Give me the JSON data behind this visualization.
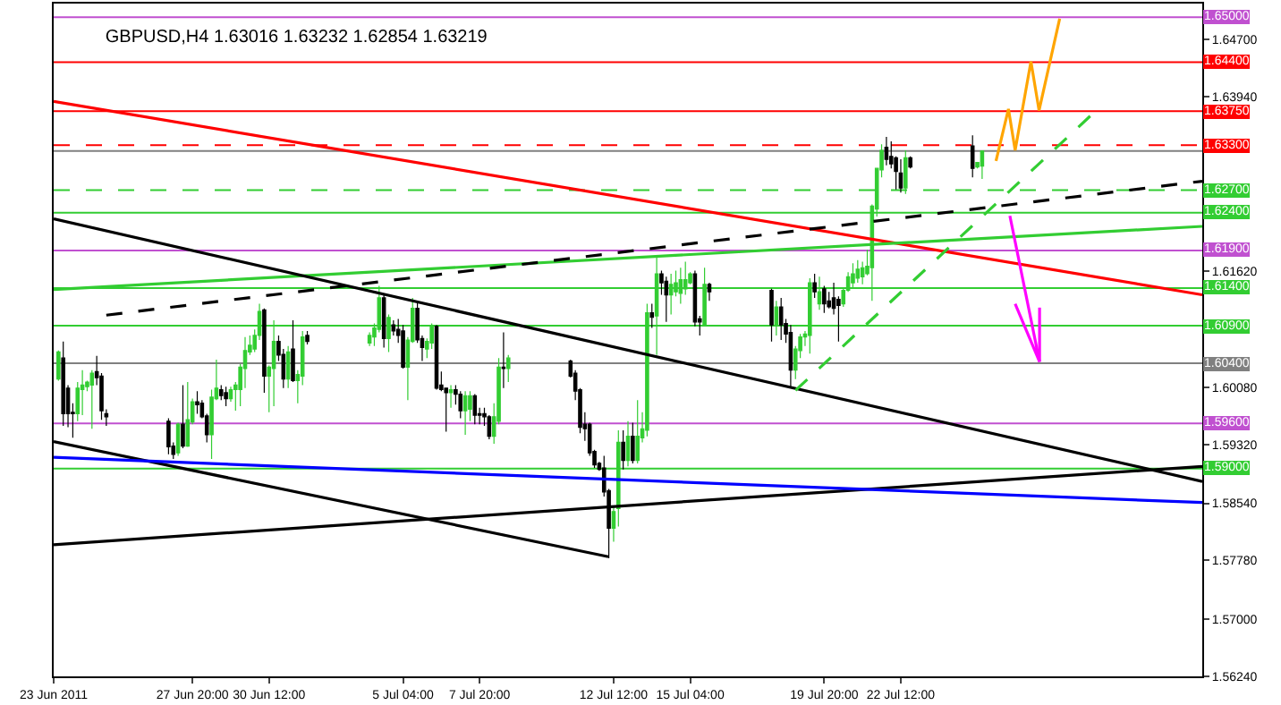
{
  "chart_data": {
    "type": "candlestick",
    "title": "GBPUSD,H4 1.63016 1.63232 1.62854 1.63219",
    "x": [
      "2011-06-23T04:00",
      "2011-06-23T08:00",
      "2011-06-23T12:00",
      "2011-06-23T16:00",
      "2011-06-23T20:00",
      "2011-06-24T00:00",
      "2011-06-24T04:00",
      "2011-06-24T08:00",
      "2011-06-24T12:00",
      "2011-06-24T16:00",
      "2011-06-24T20:00",
      "2011-06-27T00:00",
      "2011-06-27T04:00",
      "2011-06-27T08:00",
      "2011-06-27T12:00",
      "2011-06-27T16:00",
      "2011-06-27T20:00",
      "2011-06-28T00:00",
      "2011-06-28T04:00",
      "2011-06-28T08:00",
      "2011-06-28T12:00",
      "2011-06-28T16:00",
      "2011-06-28T20:00",
      "2011-06-29T00:00",
      "2011-06-29T04:00",
      "2011-06-29T08:00",
      "2011-06-29T12:00",
      "2011-06-29T16:00",
      "2011-06-29T20:00",
      "2011-06-30T00:00",
      "2011-06-30T04:00",
      "2011-06-30T08:00",
      "2011-06-30T12:00",
      "2011-06-30T16:00",
      "2011-06-30T20:00",
      "2011-07-01T00:00",
      "2011-07-01T04:00",
      "2011-07-01T08:00",
      "2011-07-01T12:00",
      "2011-07-01T16:00",
      "2011-07-01T20:00",
      "2011-07-04T00:00",
      "2011-07-04T04:00",
      "2011-07-04T08:00",
      "2011-07-04T12:00",
      "2011-07-04T16:00",
      "2011-07-04T20:00",
      "2011-07-05T00:00",
      "2011-07-05T04:00",
      "2011-07-05T08:00",
      "2011-07-05T12:00",
      "2011-07-05T16:00",
      "2011-07-05T20:00",
      "2011-07-06T00:00",
      "2011-07-06T04:00",
      "2011-07-06T08:00",
      "2011-07-06T12:00",
      "2011-07-06T16:00",
      "2011-07-06T20:00",
      "2011-07-07T00:00",
      "2011-07-07T04:00",
      "2011-07-07T08:00",
      "2011-07-07T12:00",
      "2011-07-07T16:00",
      "2011-07-07T20:00",
      "2011-07-08T00:00",
      "2011-07-08T04:00",
      "2011-07-08T08:00",
      "2011-07-08T12:00",
      "2011-07-08T16:00",
      "2011-07-08T20:00",
      "2011-07-11T00:00",
      "2011-07-11T04:00",
      "2011-07-11T08:00",
      "2011-07-11T12:00",
      "2011-07-11T16:00",
      "2011-07-11T20:00",
      "2011-07-12T00:00",
      "2011-07-12T04:00",
      "2011-07-12T08:00",
      "2011-07-12T12:00",
      "2011-07-12T16:00",
      "2011-07-12T20:00",
      "2011-07-13T00:00",
      "2011-07-13T04:00",
      "2011-07-13T08:00",
      "2011-07-13T12:00",
      "2011-07-13T16:00",
      "2011-07-13T20:00",
      "2011-07-14T00:00",
      "2011-07-14T04:00",
      "2011-07-14T08:00",
      "2011-07-14T12:00",
      "2011-07-14T16:00",
      "2011-07-14T20:00",
      "2011-07-15T00:00",
      "2011-07-15T04:00",
      "2011-07-15T08:00",
      "2011-07-15T12:00",
      "2011-07-15T16:00",
      "2011-07-15T20:00",
      "2011-07-18T00:00",
      "2011-07-18T04:00",
      "2011-07-18T08:00",
      "2011-07-18T12:00",
      "2011-07-18T16:00",
      "2011-07-18T20:00",
      "2011-07-19T00:00",
      "2011-07-19T04:00",
      "2011-07-19T08:00",
      "2011-07-19T12:00",
      "2011-07-19T16:00",
      "2011-07-19T20:00",
      "2011-07-20T00:00",
      "2011-07-20T04:00",
      "2011-07-20T08:00",
      "2011-07-20T12:00",
      "2011-07-20T16:00",
      "2011-07-20T20:00",
      "2011-07-21T00:00",
      "2011-07-21T04:00",
      "2011-07-21T08:00",
      "2011-07-21T12:00",
      "2011-07-21T16:00",
      "2011-07-21T20:00",
      "2011-07-22T00:00",
      "2011-07-22T04:00",
      "2011-07-22T08:00",
      "2011-07-22T12:00",
      "2011-07-22T16:00",
      "2011-07-22T20:00",
      "2011-07-25T00:00",
      "2011-07-25T04:00",
      "2011-07-25T08:00"
    ],
    "ohlc": [
      [
        1.6019,
        1.6057,
        1.6017,
        1.6055
      ],
      [
        1.6047,
        1.6069,
        1.5957,
        1.5973
      ],
      [
        1.6007,
        1.6011,
        1.5955,
        1.5973
      ],
      [
        1.5975,
        1.5987,
        1.5941,
        1.5973
      ],
      [
        1.5973,
        1.6015,
        1.5963,
        1.6007
      ],
      [
        1.6005,
        1.6031,
        1.5971,
        1.6011
      ],
      [
        1.6009,
        1.6017,
        1.6003,
        1.6015
      ],
      [
        1.6011,
        1.6031,
        1.5953,
        1.6027
      ],
      [
        1.6029,
        1.605,
        1.6011,
        1.6021
      ],
      [
        1.6023,
        1.6027,
        1.5965,
        1.5977
      ],
      [
        1.5973,
        1.5979,
        1.5957,
        1.5969
      ],
      [
        1.5963,
        1.5967,
        1.5919,
        1.5929
      ],
      [
        1.593,
        1.5935,
        1.5913,
        1.5919
      ],
      [
        1.5921,
        1.5961,
        1.5917,
        1.5959
      ],
      [
        1.5959,
        1.6011,
        1.5927,
        1.593
      ],
      [
        1.593,
        1.6015,
        1.5929,
        1.5965
      ],
      [
        1.5962,
        1.5993,
        1.5959,
        1.5989
      ],
      [
        1.5989,
        1.6003,
        1.5973,
        1.5985
      ],
      [
        1.5987,
        1.5991,
        1.5967,
        1.5969
      ],
      [
        1.597,
        1.5973,
        1.5935,
        1.5945
      ],
      [
        1.5945,
        1.6005,
        1.5913,
        1.5995
      ],
      [
        1.5993,
        1.6045,
        1.5991,
        1.6007
      ],
      [
        1.6005,
        1.6011,
        1.5991,
        1.5997
      ],
      [
        1.6001,
        1.6009,
        1.5983,
        1.5993
      ],
      [
        1.5993,
        1.6009,
        1.5989,
        1.6005
      ],
      [
        1.6005,
        1.6015,
        1.5977,
        1.6011
      ],
      [
        1.6005,
        1.6039,
        1.5983,
        1.6035
      ],
      [
        1.6033,
        1.6075,
        1.6007,
        1.6057
      ],
      [
        1.6055,
        1.6077,
        1.6051,
        1.6064
      ],
      [
        1.6059,
        1.6085,
        1.6055,
        1.6077
      ],
      [
        1.6077,
        1.6119,
        1.6071,
        1.6109
      ],
      [
        1.6111,
        1.6113,
        1.6001,
        1.6023
      ],
      [
        1.6023,
        1.6037,
        1.5975,
        1.6035
      ],
      [
        1.6033,
        1.6097,
        1.5983,
        1.6069
      ],
      [
        1.6069,
        1.6077,
        1.6043,
        1.6051
      ],
      [
        1.6052,
        1.6059,
        1.6007,
        1.6019
      ],
      [
        1.6019,
        1.6063,
        1.6007,
        1.6055
      ],
      [
        1.6059,
        1.6097,
        1.6015,
        1.6017
      ],
      [
        1.6017,
        1.6031,
        1.5987,
        1.6025
      ],
      [
        1.6023,
        1.6083,
        1.6011,
        1.6075
      ],
      [
        1.6077,
        1.6083,
        1.6065,
        1.6069
      ],
      [
        1.6067,
        1.6081,
        1.6063,
        1.6077
      ],
      [
        1.6075,
        1.6093,
        1.6063,
        1.6087
      ],
      [
        1.6085,
        1.6143,
        1.6081,
        1.6127
      ],
      [
        1.6127,
        1.6131,
        1.6061,
        1.6073
      ],
      [
        1.6073,
        1.6105,
        1.6055,
        1.6101
      ],
      [
        1.6091,
        1.6097,
        1.6077,
        1.6083
      ],
      [
        1.6085,
        1.6099,
        1.6067,
        1.6077
      ],
      [
        1.6083,
        1.6091,
        1.6033,
        1.6035
      ],
      [
        1.6035,
        1.6075,
        1.5991,
        1.6071
      ],
      [
        1.6069,
        1.6127,
        1.6067,
        1.6113
      ],
      [
        1.6113,
        1.6123,
        1.6067,
        1.6071
      ],
      [
        1.6073,
        1.6077,
        1.6043,
        1.6061
      ],
      [
        1.6059,
        1.6073,
        1.6047,
        1.6069
      ],
      [
        1.6067,
        1.6093,
        1.6059,
        1.6089
      ],
      [
        1.6089,
        1.6091,
        1.6005,
        1.6007
      ],
      [
        1.6011,
        1.6029,
        1.6003,
        1.6005
      ],
      [
        1.6007,
        1.6007,
        1.5949,
        1.6001
      ],
      [
        1.6001,
        1.6011,
        1.5981,
        1.6005
      ],
      [
        1.6005,
        1.6011,
        1.5985,
        1.5999
      ],
      [
        1.5999,
        1.6003,
        1.5967,
        1.5977
      ],
      [
        1.5977,
        1.6003,
        1.5945,
        1.5997
      ],
      [
        1.5979,
        1.6003,
        1.5963,
        1.5997
      ],
      [
        1.5997,
        1.5999,
        1.5959,
        1.5971
      ],
      [
        1.5973,
        1.5981,
        1.5959,
        1.5971
      ],
      [
        1.5973,
        1.5981,
        1.5957,
        1.5969
      ],
      [
        1.5969,
        1.5971,
        1.5939,
        1.5943
      ],
      [
        1.5943,
        1.5987,
        1.5933,
        1.5969
      ],
      [
        1.5963,
        1.6047,
        1.5959,
        1.6035
      ],
      [
        1.6035,
        1.6081,
        1.6007,
        1.6033
      ],
      [
        1.6033,
        1.6051,
        1.6015,
        1.6047
      ],
      [
        1.6043,
        1.6045,
        1.6021,
        1.6023
      ],
      [
        1.6027,
        1.6031,
        1.5991,
        1.6003
      ],
      [
        1.6005,
        1.6007,
        1.5947,
        1.5955
      ],
      [
        1.5959,
        1.5975,
        1.5937,
        1.5953
      ],
      [
        1.5959,
        1.5961,
        1.5917,
        1.5921
      ],
      [
        1.5923,
        1.5925,
        1.5901,
        1.5905
      ],
      [
        1.5907,
        1.5909,
        1.5897,
        1.5899
      ],
      [
        1.5901,
        1.5917,
        1.5863,
        1.5869
      ],
      [
        1.5871,
        1.5873,
        1.5781,
        1.5821
      ],
      [
        1.5821,
        1.5851,
        1.5803,
        1.5843
      ],
      [
        1.5847,
        1.5951,
        1.5823,
        1.5935
      ],
      [
        1.5935,
        1.5951,
        1.5899,
        1.5911
      ],
      [
        1.5911,
        1.5963,
        1.5903,
        1.5943
      ],
      [
        1.5943,
        1.5961,
        1.5907,
        1.5911
      ],
      [
        1.5911,
        1.5991,
        1.5907,
        1.5943
      ],
      [
        1.5941,
        1.5975,
        1.5935,
        1.5953
      ],
      [
        1.5951,
        1.6119,
        1.5943,
        1.6107
      ],
      [
        1.6107,
        1.6119,
        1.6087,
        1.6101
      ],
      [
        1.6103,
        1.6183,
        1.6051,
        1.6159
      ],
      [
        1.6159,
        1.6163,
        1.6131,
        1.6147
      ],
      [
        1.6149,
        1.6155,
        1.6095,
        1.6131
      ],
      [
        1.6131,
        1.6159,
        1.6105,
        1.6145
      ],
      [
        1.6135,
        1.6163,
        1.6129,
        1.6147
      ],
      [
        1.6133,
        1.6167,
        1.6119,
        1.6151
      ],
      [
        1.6139,
        1.6175,
        1.6131,
        1.6151
      ],
      [
        1.6147,
        1.6161,
        1.6145,
        1.6159
      ],
      [
        1.6159,
        1.6163,
        1.6089,
        1.6095
      ],
      [
        1.6099,
        1.6103,
        1.6077,
        1.6095
      ],
      [
        1.6091,
        1.6167,
        1.6089,
        1.6145
      ],
      [
        1.6145,
        1.6147,
        1.6123,
        1.6135
      ],
      [
        1.6137,
        1.6139,
        1.6069,
        1.6091
      ],
      [
        1.6091,
        1.6123,
        1.6077,
        1.6115
      ],
      [
        1.6115,
        1.6127,
        1.6071,
        1.6091
      ],
      [
        1.6093,
        1.6099,
        1.6067,
        1.6079
      ],
      [
        1.6081,
        1.6091,
        1.6007,
        1.6031
      ],
      [
        1.6031,
        1.6063,
        1.6019,
        1.6059
      ],
      [
        1.6057,
        1.6079,
        1.6047,
        1.6075
      ],
      [
        1.6075,
        1.6083,
        1.6063,
        1.6079
      ],
      [
        1.6077,
        1.6153,
        1.6053,
        1.6147
      ],
      [
        1.6147,
        1.6159,
        1.6127,
        1.6135
      ],
      [
        1.6119,
        1.6155,
        1.6111,
        1.6135
      ],
      [
        1.6139,
        1.6143,
        1.6107,
        1.6119
      ],
      [
        1.6123,
        1.6135,
        1.6113,
        1.6115
      ],
      [
        1.6127,
        1.6147,
        1.6105,
        1.6113
      ],
      [
        1.6125,
        1.6129,
        1.6069,
        1.6117
      ],
      [
        1.6119,
        1.6141,
        1.6115,
        1.6137
      ],
      [
        1.6137,
        1.6161,
        1.6135,
        1.6155
      ],
      [
        1.6147,
        1.6173,
        1.6141,
        1.6159
      ],
      [
        1.6153,
        1.6177,
        1.6147,
        1.6165
      ],
      [
        1.6155,
        1.6175,
        1.6145,
        1.6167
      ],
      [
        1.6159,
        1.6191,
        1.6157,
        1.6169
      ],
      [
        1.6167,
        1.6251,
        1.6123,
        1.6249
      ],
      [
        1.6245,
        1.6299,
        1.6235,
        1.6299
      ],
      [
        1.6297,
        1.6331,
        1.6287,
        1.6323
      ],
      [
        1.6327,
        1.6341,
        1.6303,
        1.6311
      ],
      [
        1.6315,
        1.6335,
        1.6299,
        1.6305
      ],
      [
        1.6313,
        1.6315,
        1.6271,
        1.6295
      ],
      [
        1.6293,
        1.6311,
        1.6267,
        1.6273
      ],
      [
        1.6273,
        1.6323,
        1.6265,
        1.6313
      ],
      [
        1.6313,
        1.6315,
        1.6299,
        1.6301
      ],
      [
        1.6329,
        1.6343,
        1.6287,
        1.6299
      ],
      [
        1.6301,
        1.6307,
        1.6299,
        1.6307
      ],
      [
        1.6302,
        1.6323,
        1.6285,
        1.6322
      ]
    ],
    "colors": [
      "#32cd32",
      "#000000",
      "#000000",
      "#000000",
      "#32cd32",
      "#32cd32",
      "#32cd32",
      "#32cd32",
      "#000000",
      "#000000",
      "#000000",
      "#000000",
      "#000000",
      "#32cd32",
      "#000000",
      "#32cd32",
      "#32cd32",
      "#000000",
      "#000000",
      "#000000",
      "#32cd32",
      "#32cd32",
      "#000000",
      "#000000",
      "#32cd32",
      "#32cd32",
      "#32cd32",
      "#32cd32",
      "#32cd32",
      "#32cd32",
      "#32cd32",
      "#000000",
      "#32cd32",
      "#32cd32",
      "#000000",
      "#000000",
      "#32cd32",
      "#000000",
      "#32cd32",
      "#32cd32",
      "#000000",
      "#32cd32",
      "#32cd32",
      "#32cd32",
      "#000000",
      "#32cd32",
      "#000000",
      "#000000",
      "#000000",
      "#32cd32",
      "#32cd32",
      "#000000",
      "#000000",
      "#32cd32",
      "#32cd32",
      "#000000",
      "#000000",
      "#000000",
      "#32cd32",
      "#000000",
      "#000000",
      "#32cd32",
      "#32cd32",
      "#000000",
      "#000000",
      "#000000",
      "#000000",
      "#32cd32",
      "#32cd32",
      "#000000",
      "#32cd32",
      "#000000",
      "#000000",
      "#000000",
      "#000000",
      "#000000",
      "#000000",
      "#000000",
      "#000000",
      "#000000",
      "#32cd32",
      "#32cd32",
      "#000000",
      "#32cd32",
      "#000000",
      "#32cd32",
      "#32cd32",
      "#32cd32",
      "#000000",
      "#32cd32",
      "#000000",
      "#000000",
      "#32cd32",
      "#32cd32",
      "#32cd32",
      "#32cd32",
      "#32cd32",
      "#000000",
      "#000000",
      "#32cd32",
      "#000000",
      "#000000",
      "#32cd32",
      "#000000",
      "#000000",
      "#000000",
      "#32cd32",
      "#32cd32",
      "#32cd32",
      "#32cd32",
      "#000000",
      "#32cd32",
      "#000000",
      "#000000",
      "#000000",
      "#000000",
      "#32cd32",
      "#32cd32",
      "#32cd32",
      "#32cd32",
      "#32cd32",
      "#32cd32",
      "#32cd32",
      "#32cd32",
      "#32cd32",
      "#000000",
      "#000000",
      "#000000",
      "#000000",
      "#32cd32",
      "#000000",
      "#000000",
      "#32cd32",
      "#32cd32"
    ],
    "series": [
      {
        "type": "line",
        "color": "#ff0000",
        "x": [
          "2011-06-23T00:00",
          "2011-08-02T00:00"
        ],
        "values": [
          1.6388,
          1.6131
        ]
      },
      {
        "type": "line",
        "color": "#32cd32",
        "x": [
          "2011-06-23T00:00",
          "2011-08-02T00:00"
        ],
        "values": [
          1.6138,
          1.6222
        ]
      },
      {
        "type": "line",
        "color": "#000000",
        "line_style": "dashed",
        "x": [
          "2011-06-24T20:00",
          "2011-08-02T00:00"
        ],
        "values": [
          1.6104,
          1.6282
        ]
      },
      {
        "type": "line",
        "color": "#000000",
        "x": [
          "2011-06-23T00:00",
          "2011-08-02T00:00"
        ],
        "values": [
          1.6232,
          1.5883
        ]
      },
      {
        "type": "line",
        "color": "#000000",
        "x": [
          "2011-06-23T00:00",
          "2011-07-12T07:36"
        ],
        "values": [
          1.5936,
          1.5783
        ]
      },
      {
        "type": "line",
        "color": "#000000",
        "x": [
          "2011-06-23T00:00",
          "2011-08-02T00:00"
        ],
        "values": [
          1.5799,
          1.5903
        ]
      },
      {
        "type": "line",
        "color": "#0000ff",
        "x": [
          "2011-06-23T00:00",
          "2011-08-02T00:00"
        ],
        "values": [
          1.5915,
          1.5855
        ]
      },
      {
        "type": "line",
        "color": "#32cd32",
        "line_style": "dashed",
        "x": [
          "2011-07-18T20:00",
          "2011-07-29T04:00"
        ],
        "values": [
          1.6004,
          1.6371
        ]
      },
      {
        "type": "line",
        "color": "#ffa500",
        "x": [
          "2011-07-25T19:36",
          "2011-07-26T06:00",
          "2011-07-26T11:36",
          "2011-07-27T00:48",
          "2011-07-27T07:36",
          "2011-07-28T00:48"
        ],
        "values": [
          1.6309,
          1.6378,
          1.6323,
          1.6441,
          1.6376,
          1.6498
        ]
      },
      {
        "type": "line",
        "color": "#ff00ff",
        "x": [
          "2011-07-26T07:12",
          "2011-07-27T08:00",
          "2011-07-26T11:36"
        ],
        "values": [
          1.6236,
          1.6042,
          1.6119
        ]
      },
      {
        "type": "line",
        "color": "#ff00ff",
        "x": [
          "2011-07-27T08:00",
          "2011-07-27T08:00"
        ],
        "values": [
          1.6042,
          1.6114
        ]
      }
    ],
    "ref_lines": [
      {
        "axis": "y",
        "value": 1.65,
        "label": "1.65000",
        "color": "#c050d0"
      },
      {
        "axis": "y",
        "value": 1.644,
        "label": "1.64400",
        "color": "#ff0000"
      },
      {
        "axis": "y",
        "value": 1.6375,
        "label": "1.63750",
        "color": "#ff0000"
      },
      {
        "axis": "y",
        "value": 1.633,
        "label": "1.63300",
        "color": "#ff0000",
        "line_style": "dashed"
      },
      {
        "axis": "y",
        "value": 1.6322,
        "color": "#808080"
      },
      {
        "axis": "y",
        "value": 1.627,
        "label": "1.62700",
        "color": "#32cd32",
        "line_style": "dashed"
      },
      {
        "axis": "y",
        "value": 1.624,
        "label": "1.62400",
        "color": "#32cd32"
      },
      {
        "axis": "y",
        "value": 1.619,
        "label": "1.61900",
        "color": "#c050d0"
      },
      {
        "axis": "y",
        "value": 1.614,
        "label": "1.61400",
        "color": "#32cd32"
      },
      {
        "axis": "y",
        "value": 1.609,
        "label": "1.60900",
        "color": "#32cd32"
      },
      {
        "axis": "y",
        "value": 1.604,
        "label": "1.60400",
        "color": "#808080"
      },
      {
        "axis": "y",
        "value": 1.596,
        "label": "1.59600",
        "color": "#c050d0"
      },
      {
        "axis": "y",
        "value": 1.59,
        "label": "1.59000",
        "color": "#32cd32"
      }
    ],
    "xlim": [
      "2011-06-23T00:00",
      "2011-08-02T00:00"
    ],
    "xticks": [
      {
        "value": "2011-06-23T00:00",
        "label": "23 Jun 2011"
      },
      {
        "value": "2011-06-27T20:00",
        "label": "27 Jun 20:00"
      },
      {
        "value": "2011-06-30T12:00",
        "label": "30 Jun 12:00"
      },
      {
        "value": "2011-07-05T04:00",
        "label": "5 Jul 04:00"
      },
      {
        "value": "2011-07-07T20:00",
        "label": "7 Jul 20:00"
      },
      {
        "value": "2011-07-12T12:00",
        "label": "12 Jul 12:00"
      },
      {
        "value": "2011-07-15T04:00",
        "label": "15 Jul 04:00"
      },
      {
        "value": "2011-07-19T20:00",
        "label": "19 Jul 20:00"
      },
      {
        "value": "2011-07-22T12:00",
        "label": "22 Jul 12:00"
      }
    ],
    "ylim": [
      1.5624,
      1.6518
    ],
    "yticks": [
      {
        "value": 1.647,
        "label": "1.64700"
      },
      {
        "value": 1.6394,
        "label": "1.63940"
      },
      {
        "value": 1.6162,
        "label": "1.61620"
      },
      {
        "value": 1.6008,
        "label": "1.60080"
      },
      {
        "value": 1.5932,
        "label": "1.59320"
      },
      {
        "value": 1.5854,
        "label": "1.58540"
      },
      {
        "value": 1.5778,
        "label": "1.57780"
      },
      {
        "value": 1.57,
        "label": "1.57000"
      },
      {
        "value": 1.5624,
        "label": "1.56240"
      }
    ],
    "grid": false
  }
}
